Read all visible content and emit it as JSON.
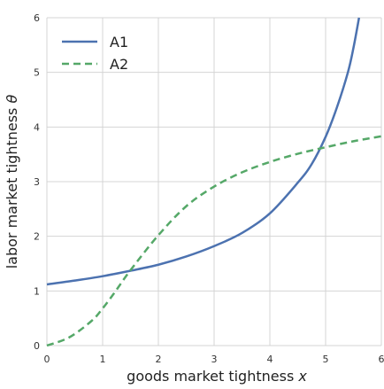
{
  "chart_data": {
    "type": "line",
    "xlabel": "goods market tightness ",
    "xlabel_var": "x",
    "ylabel": "labor market tightness ",
    "ylabel_var": "θ",
    "xlim": [
      0,
      6
    ],
    "ylim": [
      0,
      6
    ],
    "xticks": [
      "0",
      "1",
      "2",
      "3",
      "4",
      "5",
      "6"
    ],
    "yticks": [
      "0",
      "1",
      "2",
      "3",
      "4",
      "5",
      "6"
    ],
    "grid": true,
    "legend_placement": "top-left",
    "series": [
      {
        "name": "A1",
        "style": "solid",
        "color": "#4c72b0",
        "x": [
          0,
          0.5,
          1,
          1.5,
          2,
          2.5,
          3,
          3.5,
          4,
          4.5,
          4.75,
          5,
          5.2,
          5.4,
          5.5,
          5.6
        ],
        "y": [
          1.12,
          1.19,
          1.27,
          1.37,
          1.48,
          1.63,
          1.82,
          2.06,
          2.42,
          2.98,
          3.32,
          3.82,
          4.35,
          5.0,
          5.45,
          6.0
        ]
      },
      {
        "name": "A2",
        "style": "dashed",
        "color": "#55a868",
        "x": [
          0,
          0.4,
          0.8,
          1,
          1.2,
          1.5,
          2,
          2.5,
          3,
          3.5,
          4,
          4.5,
          5,
          5.5,
          6
        ],
        "y": [
          0.0,
          0.15,
          0.45,
          0.68,
          0.95,
          1.38,
          2.02,
          2.55,
          2.91,
          3.17,
          3.36,
          3.51,
          3.63,
          3.74,
          3.83
        ]
      }
    ]
  }
}
